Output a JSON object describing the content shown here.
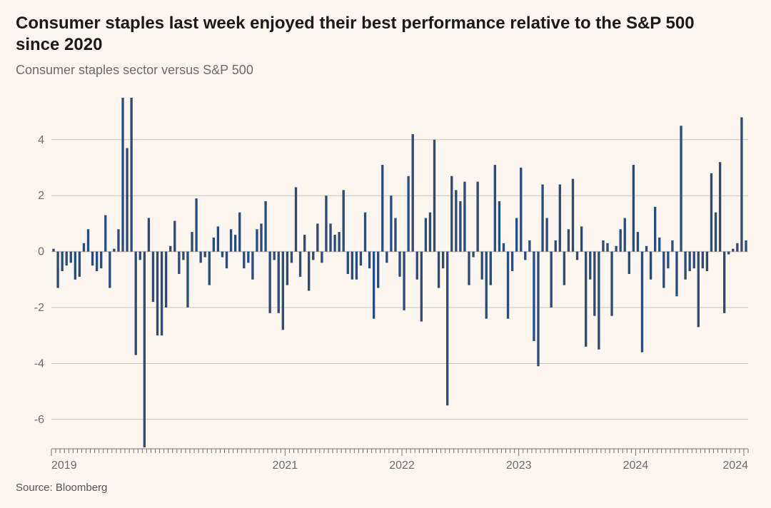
{
  "title": "Consumer staples last week enjoyed their best performance relative to the S&P 500 since 2020",
  "subtitle": "Consumer staples sector versus S&P 500",
  "source": "Source: Bloomberg",
  "chart": {
    "type": "bar",
    "bar_color": "#2b4b7a",
    "background_color": "#fdf6ee",
    "grid_color": "#c8c1b6",
    "axis_text_color": "#6b6b6b",
    "tick_color": "#7a736a",
    "ylim": [
      -7,
      5.5
    ],
    "yticks": [
      -6,
      -4,
      -2,
      0,
      2,
      4
    ],
    "xticks_labels": [
      "2019",
      "2021",
      "2022",
      "2023",
      "2024",
      "2024"
    ],
    "xticks_positions_idx": [
      0,
      54,
      81,
      108,
      135,
      160
    ],
    "bar_width_rel": 0.55,
    "axis_fontsize": 16,
    "minor_ticks_per_year": 12,
    "values": [
      0.1,
      -1.3,
      -0.7,
      -0.5,
      -0.4,
      -1.0,
      -0.9,
      0.3,
      0.8,
      -0.5,
      -0.7,
      -0.6,
      1.3,
      -1.3,
      0.1,
      0.8,
      5.5,
      3.7,
      5.5,
      -3.7,
      -0.3,
      -7.0,
      1.2,
      -1.8,
      -3.0,
      -3.0,
      -2.0,
      0.2,
      1.1,
      -0.8,
      -0.3,
      -2.0,
      0.7,
      1.9,
      -0.4,
      -0.2,
      -1.2,
      0.5,
      0.9,
      -0.2,
      -0.6,
      0.8,
      0.6,
      1.4,
      -0.6,
      -0.4,
      -1.0,
      0.8,
      1.0,
      1.8,
      -2.2,
      -0.3,
      -2.2,
      -2.8,
      -1.2,
      -0.4,
      2.3,
      -0.9,
      0.6,
      -1.4,
      -0.3,
      1.0,
      -0.4,
      2.0,
      1.0,
      0.6,
      0.7,
      2.2,
      -0.8,
      -1.0,
      -1.0,
      -0.5,
      1.4,
      -0.6,
      -2.4,
      -1.3,
      3.1,
      -0.4,
      2.0,
      1.2,
      -0.9,
      -2.1,
      2.7,
      4.2,
      -1.0,
      -2.5,
      1.2,
      1.4,
      4.0,
      -1.3,
      -0.6,
      -5.5,
      2.7,
      2.2,
      1.8,
      2.5,
      -1.2,
      -0.2,
      2.5,
      -1.0,
      -2.4,
      -1.2,
      3.1,
      1.8,
      0.3,
      -2.4,
      -0.7,
      1.2,
      3.0,
      -0.3,
      0.4,
      -3.2,
      -4.1,
      2.4,
      1.2,
      -2.0,
      0.4,
      2.4,
      -1.2,
      0.8,
      2.6,
      -0.3,
      0.9,
      -3.4,
      -1.0,
      -2.3,
      -3.5,
      0.4,
      0.3,
      -2.3,
      0.2,
      0.8,
      1.2,
      -0.8,
      3.1,
      0.7,
      -3.6,
      0.2,
      -1.0,
      1.6,
      0.5,
      -1.3,
      -0.6,
      0.4,
      -1.6,
      4.5,
      -1.0,
      -0.7,
      -0.6,
      -2.7,
      -0.6,
      -0.7,
      2.8,
      1.4,
      3.2,
      -2.2,
      -0.1,
      0.1,
      0.3,
      4.8,
      0.4
    ]
  }
}
